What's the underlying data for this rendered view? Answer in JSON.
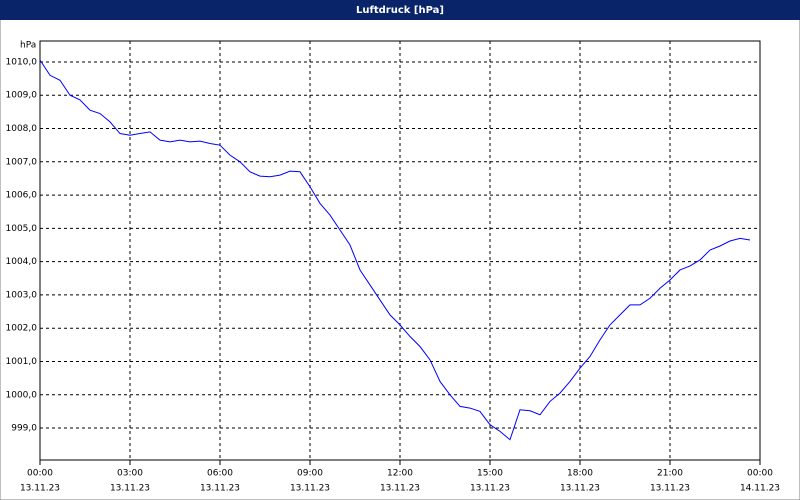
{
  "chart_data": {
    "type": "line",
    "title": "Luftdruck [hPa]",
    "y_label": "hPa",
    "x": [
      0,
      20,
      40,
      60,
      80,
      100,
      120,
      140,
      160,
      180,
      200,
      220,
      240,
      260,
      280,
      300,
      320,
      340,
      360,
      380,
      400,
      420,
      440,
      460,
      480,
      500,
      520,
      540,
      560,
      580,
      600,
      620,
      640,
      660,
      680,
      700,
      720,
      740,
      760,
      780,
      800,
      820,
      840,
      860,
      880,
      900,
      920,
      940,
      960,
      980,
      1000,
      1020,
      1040,
      1060,
      1080,
      1100,
      1120,
      1140,
      1160,
      1180,
      1200,
      1220,
      1240,
      1260,
      1280,
      1300,
      1320,
      1340,
      1360,
      1380,
      1400,
      1420
    ],
    "series": [
      {
        "color": "#0000ff",
        "values": [
          1010.06,
          1009.6,
          1009.45,
          1009.0,
          1008.86,
          1008.55,
          1008.45,
          1008.2,
          1007.85,
          1007.8,
          1007.85,
          1007.9,
          1007.65,
          1007.6,
          1007.65,
          1007.6,
          1007.62,
          1007.55,
          1007.5,
          1007.2,
          1007.0,
          1006.7,
          1006.57,
          1006.55,
          1006.6,
          1006.72,
          1006.7,
          1006.25,
          1005.75,
          1005.4,
          1004.95,
          1004.5,
          1003.75,
          1003.3,
          1002.85,
          1002.4,
          1002.1,
          1001.75,
          1001.45,
          1001.05,
          1000.4,
          1000.0,
          999.65,
          999.6,
          999.5,
          999.1,
          998.9,
          998.65,
          999.55,
          999.52,
          999.4,
          999.8,
          1000.05,
          1000.4,
          1000.8,
          1001.15,
          1001.65,
          1002.1,
          1002.4,
          1002.7,
          1002.7,
          1002.9,
          1003.2,
          1003.45,
          1003.75,
          1003.87,
          1004.05,
          1004.35,
          1004.47,
          1004.62,
          1004.7,
          1004.65
        ]
      }
    ],
    "xlim": [
      0,
      1440
    ],
    "xticks": [
      {
        "value": 0,
        "label": "00:00"
      },
      {
        "value": 180,
        "label": "03:00"
      },
      {
        "value": 360,
        "label": "06:00"
      },
      {
        "value": 540,
        "label": "09:00"
      },
      {
        "value": 720,
        "label": "12:00"
      },
      {
        "value": 900,
        "label": "15:00"
      },
      {
        "value": 1080,
        "label": "18:00"
      },
      {
        "value": 1260,
        "label": "21:00"
      },
      {
        "value": 1440,
        "label": "00:00"
      }
    ],
    "xtick_dates": [
      "13.11.23",
      "13.11.23",
      "13.11.23",
      "13.11.23",
      "13.11.23",
      "13.11.23",
      "13.11.23",
      "13.11.23",
      "14.11.23"
    ],
    "ylim": [
      998.04,
      1010.63
    ],
    "yticks": [
      {
        "value": 999,
        "label": "999,0"
      },
      {
        "value": 1000,
        "label": "1000,0"
      },
      {
        "value": 1001,
        "label": "1001,0"
      },
      {
        "value": 1002,
        "label": "1002,0"
      },
      {
        "value": 1003,
        "label": "1003,0"
      },
      {
        "value": 1004,
        "label": "1004,0"
      },
      {
        "value": 1005,
        "label": "1005,0"
      },
      {
        "value": 1006,
        "label": "1006,0"
      },
      {
        "value": 1007,
        "label": "1007,0"
      },
      {
        "value": 1008,
        "label": "1008,0"
      },
      {
        "value": 1009,
        "label": "1009,0"
      },
      {
        "value": 1010,
        "label": "1010,0"
      }
    ],
    "grid": true
  }
}
